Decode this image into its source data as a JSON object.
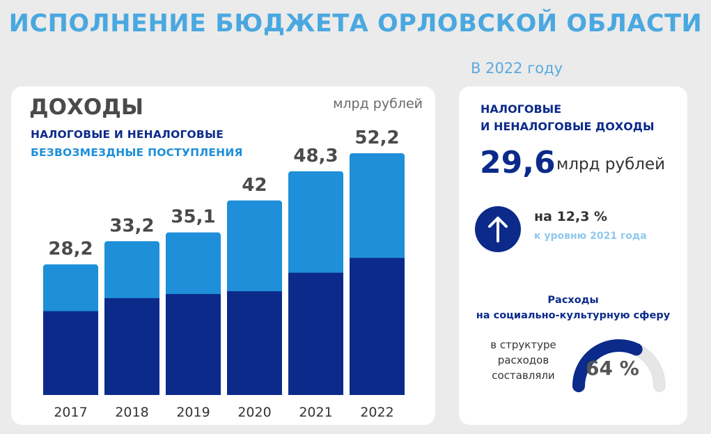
{
  "header": {
    "title": "ИСПОЛНЕНИЕ БЮДЖЕТА ОРЛОВСКОЙ ОБЛАСТИ",
    "year_note": "В 2022 году"
  },
  "colors": {
    "title": "#4aa8e0",
    "tax": "#0b2a8a",
    "grants": "#1e8fd8",
    "gauge_track": "#e6e6e6"
  },
  "chart_data": {
    "type": "bar",
    "title": "ДОХОДЫ",
    "unit": "млрд рублей",
    "stacked": true,
    "categories": [
      "2017",
      "2018",
      "2019",
      "2020",
      "2021",
      "2022"
    ],
    "series": [
      {
        "name": "НАЛОГОВЫЕ И НЕНАЛОГОВЫЕ",
        "values": [
          18.1,
          20.9,
          21.8,
          22.4,
          26.4,
          29.6
        ]
      },
      {
        "name": "БЕЗВОЗМЕЗДНЫЕ ПОСТУПЛЕНИЯ",
        "values": [
          10.1,
          12.3,
          13.3,
          19.6,
          21.9,
          22.6
        ]
      }
    ],
    "totals": [
      28.2,
      33.2,
      35.1,
      42,
      48.3,
      52.2
    ],
    "total_labels": [
      "28,2",
      "33,2",
      "35,1",
      "42",
      "48,3",
      "52,2"
    ],
    "ylim": [
      0,
      52.2
    ],
    "grid": false,
    "legend": "top-left"
  },
  "summary": {
    "kpi_label_line1": "НАЛОГОВЫЕ",
    "kpi_label_line2": "И НЕНАЛОГОВЫЕ ДОХОДЫ",
    "kpi_value": "29,6",
    "kpi_unit": "млрд рублей",
    "arrow_icon": "arrow-up-icon",
    "growth_value": "на 12,3 %",
    "growth_note": "к уровню 2021 года",
    "expenses_title_line1": "Расходы",
    "expenses_title_line2": "на социально-культурную сферу",
    "expenses_note_line1": "в структуре",
    "expenses_note_line2": "расходов",
    "expenses_note_line3": "составляли",
    "expenses_share": 64,
    "expenses_share_label": "64 %"
  }
}
